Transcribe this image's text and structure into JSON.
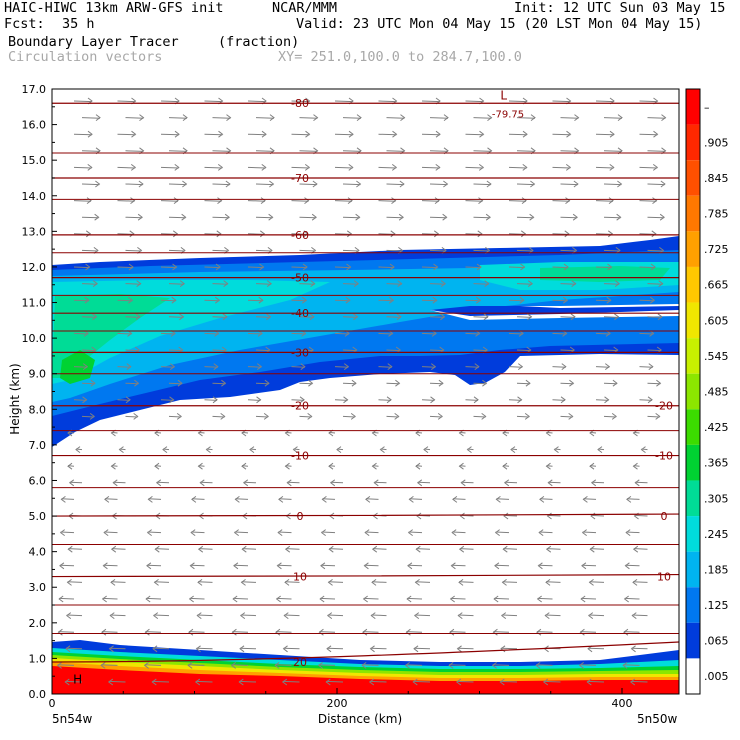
{
  "header": {
    "model": "HAIC-HIWC 13km ARW-GFS init",
    "org": "NCAR/MMM",
    "init": "Init: 12 UTC Sun 03 May 15",
    "fcst_label": "Fcst:",
    "fcst_value": "35 h",
    "valid": "Valid: 23 UTC Mon 04 May 15 (20 LST Mon 04 May 15)",
    "field": "Boundary Layer Tracer",
    "units": "(fraction)",
    "vectors": "Circulation vectors",
    "xy": "XY= 251.0,100.0 to 284.7,100.0"
  },
  "chart_data": {
    "type": "heatmap",
    "xlabel": "Distance (km)",
    "ylabel": "Height (km)",
    "xlim": [
      0,
      440
    ],
    "ylim": [
      0,
      17
    ],
    "x_ticks": [
      "0",
      "200",
      "400"
    ],
    "x_end_labels": [
      "5n54w",
      "5n50w"
    ],
    "y_ticks": [
      "0.0",
      "1.0",
      "2.0",
      "3.0",
      "4.0",
      "5.0",
      "6.0",
      "7.0",
      "8.0",
      "9.0",
      "10.0",
      "11.0",
      "12.0",
      "13.0",
      "14.0",
      "15.0",
      "16.0",
      "17.0"
    ],
    "colorbar_labels": [
      "–",
      ".905",
      ".845",
      ".785",
      ".725",
      ".665",
      ".605",
      ".545",
      ".485",
      ".425",
      ".365",
      ".305",
      ".245",
      ".185",
      ".125",
      ".065",
      ".005"
    ],
    "colorbar_colors": [
      "#ff0000",
      "#ff2800",
      "#ff5000",
      "#ff7800",
      "#ffa000",
      "#ffc800",
      "#f0e600",
      "#c8f000",
      "#8ce600",
      "#3cdc00",
      "#00d232",
      "#00dc96",
      "#00dcdc",
      "#00b4f0",
      "#0078f0",
      "#003cdc",
      "#ffffff"
    ],
    "temperature_contours": [
      {
        "label": "-80",
        "height": 16.6
      },
      {
        "label": "-70",
        "height": 14.5
      },
      {
        "label": "-60",
        "height": 12.9
      },
      {
        "label": "-50",
        "height": 11.7
      },
      {
        "label": "-40",
        "height": 10.7
      },
      {
        "label": "-30",
        "height": 9.6
      },
      {
        "label": "-20",
        "height": 8.1
      },
      {
        "label": "-10",
        "height": 6.7
      },
      {
        "label": "0",
        "height": 5.0
      },
      {
        "label": "10",
        "height": 3.3
      },
      {
        "label": "20",
        "height": 0.9
      }
    ],
    "annotations": [
      {
        "text": "L",
        "x": 317,
        "height": 16.7
      },
      {
        "text": "-79.75",
        "x": 320,
        "height": 16.2
      },
      {
        "text": "H",
        "x": 18,
        "height": 0.3
      }
    ]
  }
}
